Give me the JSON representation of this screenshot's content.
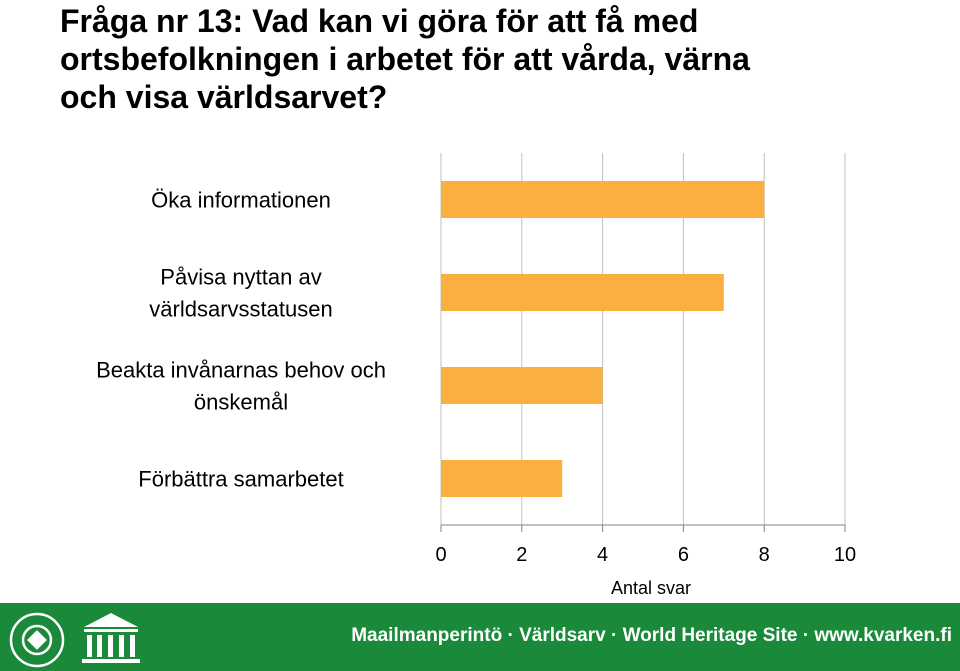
{
  "title": {
    "lines": [
      "Fråga nr 13: Vad kan vi göra för att få med",
      "ortsbefolkningen i arbetet för att vårda, värna",
      "och visa världsarvet?"
    ]
  },
  "chart_data": {
    "type": "bar",
    "orientation": "horizontal",
    "categories": [
      [
        "Öka informationen"
      ],
      [
        "Påvisa nyttan av",
        "världsarvsstatusen"
      ],
      [
        "Beakta invånarnas behov och",
        "önskemål"
      ],
      [
        "Förbättra samarbetet"
      ]
    ],
    "values": [
      8,
      7,
      4,
      3
    ],
    "xlabel": "Antal svar",
    "xlim": [
      0,
      10
    ],
    "xticks": [
      0,
      2,
      4,
      6,
      8,
      10
    ],
    "grid": true,
    "bar_color": "#F9B041"
  },
  "footer": {
    "text": "Maailmanperintö · Världsarv · World Heritage Site · www.kvarken.fi",
    "logos": {
      "heritage_seal": "world-heritage-emblem",
      "unesco": "UNESCO"
    },
    "background": "#1a8a3a"
  }
}
